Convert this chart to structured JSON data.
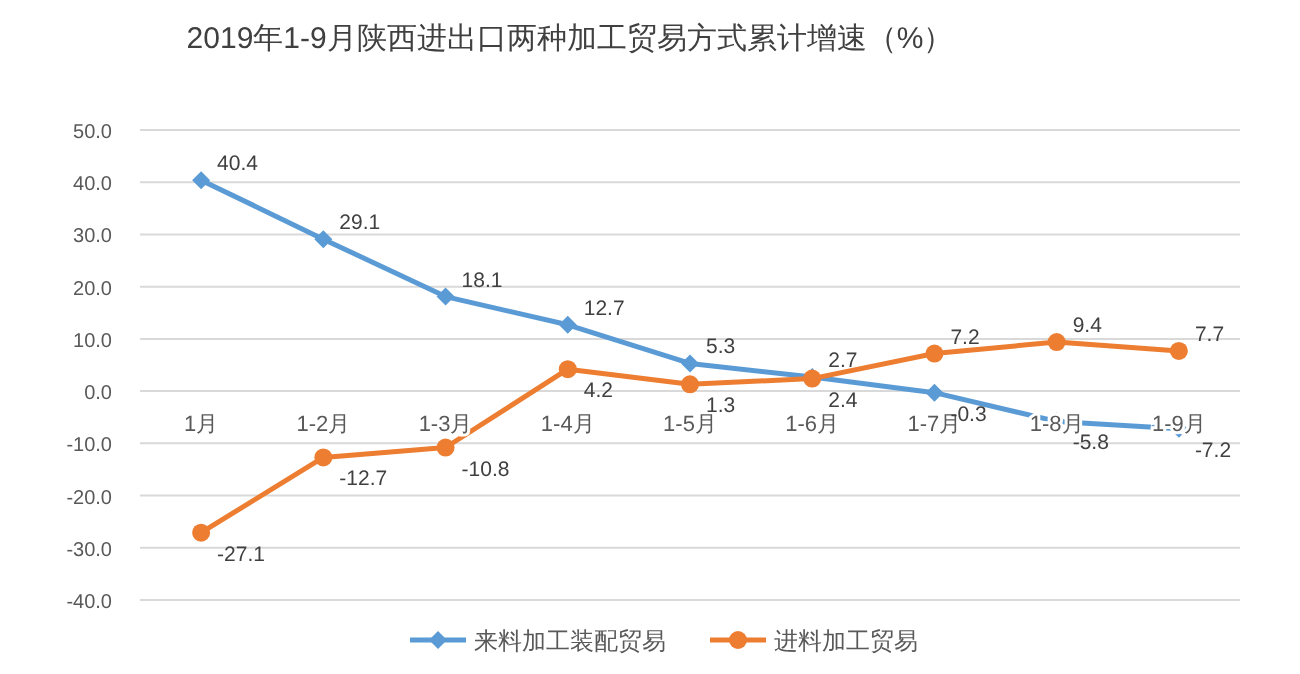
{
  "chart_data": {
    "type": "line",
    "title": "2019年1-9月陕西进出口两种加工贸易方式累计增速（%）",
    "categories": [
      "1月",
      "1-2月",
      "1-3月",
      "1-4月",
      "1-5月",
      "1-6月",
      "1-7月",
      "1-8月",
      "1-9月"
    ],
    "series": [
      {
        "name": "来料加工装配贸易",
        "color": "#5b9bd5",
        "marker": "diamond",
        "values": [
          40.4,
          29.1,
          18.1,
          12.7,
          5.3,
          2.7,
          -0.3,
          -5.8,
          -7.2
        ]
      },
      {
        "name": "进料加工贸易",
        "color": "#ed7d31",
        "marker": "circle",
        "values": [
          -27.1,
          -12.7,
          -10.8,
          4.2,
          1.3,
          2.4,
          7.2,
          9.4,
          7.7
        ]
      }
    ],
    "ylim": [
      -40,
      50
    ],
    "yticks": [
      {
        "value": -40,
        "label": "-40.0"
      },
      {
        "value": -30,
        "label": "-30.0"
      },
      {
        "value": -20,
        "label": "-20.0"
      },
      {
        "value": -10,
        "label": "-10.0"
      },
      {
        "value": 0,
        "label": "0.0"
      },
      {
        "value": 10,
        "label": "10.0"
      },
      {
        "value": 20,
        "label": "20.0"
      },
      {
        "value": 30,
        "label": "30.0"
      },
      {
        "value": 40,
        "label": "40.0"
      },
      {
        "value": 50,
        "label": "50.0"
      }
    ],
    "grid": "y",
    "legend": "bottom",
    "data_labels": true
  }
}
